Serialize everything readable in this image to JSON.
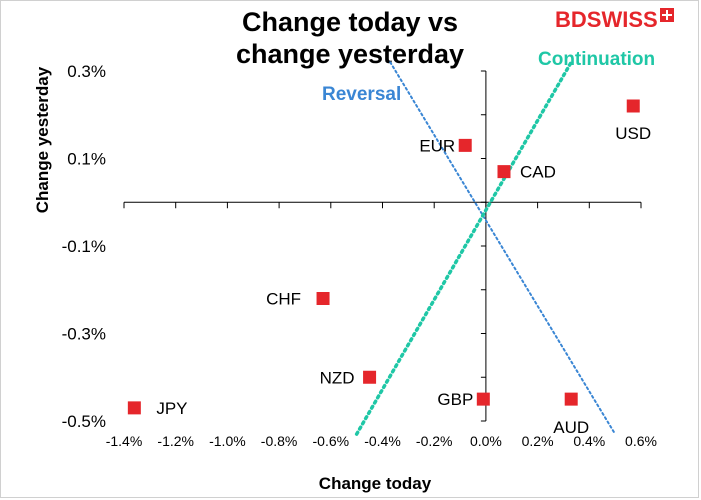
{
  "title_lines": [
    "Change today vs",
    "change yesterday"
  ],
  "logo": {
    "text_bd": "BD",
    "text_swiss": "SWISS"
  },
  "annotations": {
    "reversal": "Reversal",
    "continuation": "Continuation"
  },
  "colors": {
    "points": "#e5262b",
    "reversal_line": "#3a86d4",
    "continuation_line": "#1fc7a6",
    "axis": "#000000"
  },
  "chart_data": {
    "type": "scatter",
    "title": "Change today vs change yesterday",
    "xlabel": "Change today",
    "ylabel": "Change yesterday",
    "xlim": [
      -1.4,
      0.6
    ],
    "ylim": [
      -0.5,
      0.3
    ],
    "grid": false,
    "x_ticks": [
      "-1.4%",
      "-1.2%",
      "-1.0%",
      "-0.8%",
      "-0.6%",
      "-0.4%",
      "-0.2%",
      "0.0%",
      "0.2%",
      "0.4%",
      "0.6%"
    ],
    "x_tick_values": [
      -1.4,
      -1.2,
      -1.0,
      -0.8,
      -0.6,
      -0.4,
      -0.2,
      0.0,
      0.2,
      0.4,
      0.6
    ],
    "y_ticks": [
      "0.3%",
      "0.1%",
      "-0.1%",
      "-0.3%",
      "-0.5%"
    ],
    "y_tick_values": [
      0.3,
      0.1,
      -0.1,
      -0.3,
      -0.5
    ],
    "points": [
      {
        "label": "USD",
        "x": 0.57,
        "y": 0.22
      },
      {
        "label": "EUR",
        "x": -0.08,
        "y": 0.13
      },
      {
        "label": "CAD",
        "x": 0.07,
        "y": 0.07
      },
      {
        "label": "CHF",
        "x": -0.63,
        "y": -0.22
      },
      {
        "label": "NZD",
        "x": -0.45,
        "y": -0.4
      },
      {
        "label": "GBP",
        "x": -0.01,
        "y": -0.45
      },
      {
        "label": "AUD",
        "x": 0.33,
        "y": -0.45
      },
      {
        "label": "JPY",
        "x": -1.36,
        "y": -0.47
      }
    ],
    "lines": [
      {
        "name": "Reversal",
        "from": [
          -0.37,
          0.32
        ],
        "to": [
          0.5,
          -0.53
        ]
      },
      {
        "name": "Continuation",
        "from": [
          -0.5,
          -0.53
        ],
        "to": [
          0.33,
          0.32
        ]
      }
    ]
  }
}
